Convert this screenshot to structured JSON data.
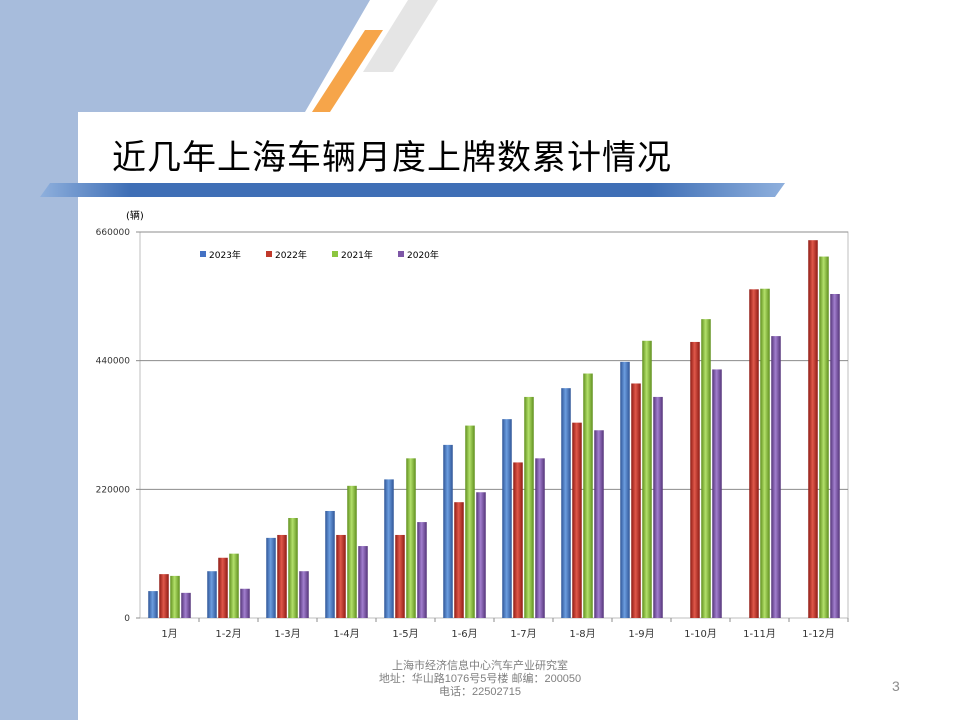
{
  "slide": {
    "title": "近几年上海车辆月度上牌数累计情况",
    "page_number": "3",
    "footer": {
      "line1": "上海市经济信息中心汽车产业研究室",
      "line2": "地址：华山路1076号5号楼   邮编：200050",
      "line3": "电话：22502715"
    },
    "colors": {
      "side_band": "#a7bcdc",
      "accent_orange": "#f6a54a",
      "divider_blue": "#3f6fb6"
    }
  },
  "chart_data": {
    "type": "bar",
    "ylabel": "(辆)",
    "ylim": [
      0,
      660000
    ],
    "yticks": [
      0,
      220000,
      440000,
      660000
    ],
    "grid": true,
    "legend_position": "top-left",
    "categories": [
      "1月",
      "1-2月",
      "1-3月",
      "1-4月",
      "1-5月",
      "1-6月",
      "1-7月",
      "1-8月",
      "1-9月",
      "1-10月",
      "1-11月",
      "1-12月"
    ],
    "series": [
      {
        "name": "2023年",
        "color": "#4472c4",
        "values": [
          46000,
          80000,
          137000,
          183000,
          237000,
          296000,
          340000,
          393000,
          438000,
          null,
          null,
          null
        ]
      },
      {
        "name": "2022年",
        "color": "#c0392b",
        "values": [
          75000,
          103000,
          142000,
          142000,
          142000,
          198000,
          266000,
          334000,
          401000,
          472000,
          562000,
          646000
        ]
      },
      {
        "name": "2021年",
        "color": "#8cc63f",
        "values": [
          72000,
          110000,
          171000,
          226000,
          273000,
          329000,
          378000,
          418000,
          474000,
          511000,
          563000,
          618000
        ]
      },
      {
        "name": "2020年",
        "color": "#7e57a7",
        "values": [
          43000,
          50000,
          80000,
          123000,
          164000,
          215000,
          273000,
          321000,
          378000,
          425000,
          482000,
          554000
        ]
      }
    ]
  }
}
